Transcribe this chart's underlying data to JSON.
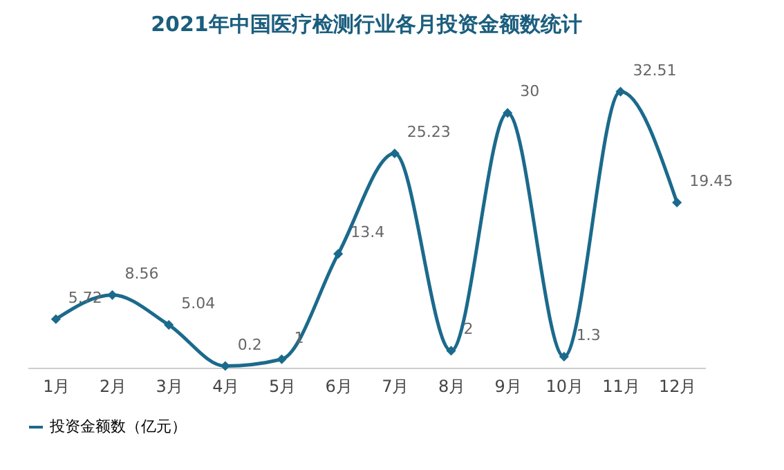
{
  "chart_data": {
    "type": "line",
    "title": "2021年中国医疗检测行业各月投资金额数统计",
    "categories": [
      "1月",
      "2月",
      "3月",
      "4月",
      "5月",
      "6月",
      "7月",
      "8月",
      "9月",
      "10月",
      "11月",
      "12月"
    ],
    "series": [
      {
        "name": "投资金额数（亿元）",
        "color": "#1b6a8c",
        "values": [
          5.72,
          8.56,
          5.04,
          0.2,
          1,
          13.4,
          25.23,
          2,
          30,
          1.3,
          32.51,
          19.45
        ]
      }
    ],
    "data_labels": true,
    "marker": "diamond",
    "legend": "bottom",
    "grid": false
  }
}
